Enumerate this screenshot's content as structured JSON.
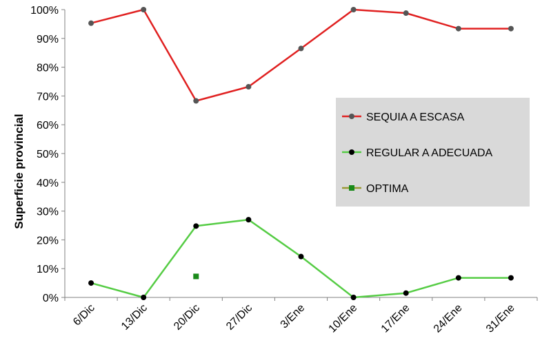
{
  "chart_data": {
    "type": "line",
    "title": "",
    "xlabel": "",
    "ylabel": "Superficie provincial",
    "categories": [
      "6/Dic",
      "13/Dic",
      "20/Dic",
      "27/Dic",
      "3/Ene",
      "10/Ene",
      "17/Ene",
      "24/Ene",
      "31/Ene"
    ],
    "y_ticks": [
      "0%",
      "10%",
      "20%",
      "30%",
      "40%",
      "50%",
      "60%",
      "70%",
      "80%",
      "90%",
      "100%"
    ],
    "ylim": [
      0,
      100
    ],
    "y_unit": "%",
    "grid": false,
    "legend_position": "right",
    "series": [
      {
        "name": "SEQUIA A ESCASA",
        "color": "#e02020",
        "marker_color": "#555555",
        "marker": "circle",
        "values": [
          95.3,
          100,
          68.3,
          73.2,
          86.5,
          100,
          98.8,
          93.4,
          93.4
        ]
      },
      {
        "name": "REGULAR A ADECUADA",
        "color": "#55cc44",
        "marker_color": "#000000",
        "marker": "circle",
        "values": [
          5.0,
          0,
          24.8,
          27.0,
          14.2,
          0,
          1.5,
          6.8,
          6.8
        ]
      },
      {
        "name": "OPTIMA",
        "color": "#999933",
        "marker_color": "#1a8a1a",
        "marker": "square",
        "values": [
          null,
          null,
          7.3,
          null,
          null,
          null,
          null,
          null,
          null
        ]
      }
    ]
  }
}
